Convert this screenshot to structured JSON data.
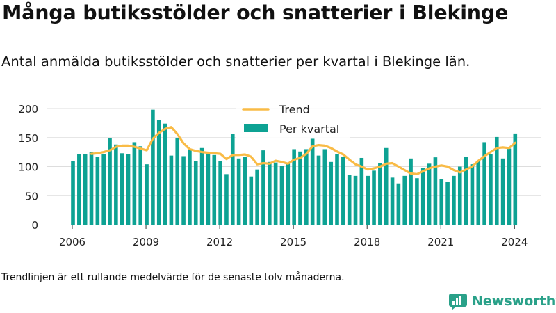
{
  "title": "Många butiksstölder och snatterier i Blekinge",
  "subtitle": "Antal anmälda butiksstölder och snatterier per kvartal i Blekinge län.",
  "footnote": "Trendlinjen är ett rullande medelvärde för de senaste tolv månaderna.",
  "brand": {
    "name": "Newsworthy",
    "icon": "newsworthy-logo-icon",
    "color": "#2aa189"
  },
  "colors": {
    "bar": "#0da293",
    "trend": "#f9bb46",
    "grid": "#dddddd",
    "axis": "#333333",
    "text": "#222222"
  },
  "chart_data": {
    "type": "bar",
    "x_start": "2006-Q1",
    "x_ticks": [
      "2006",
      "2009",
      "2012",
      "2015",
      "2018",
      "2021",
      "2024"
    ],
    "ylim": [
      0,
      200
    ],
    "y_ticks": [
      "0",
      "50",
      "100",
      "150",
      "200"
    ],
    "grid": true,
    "legend_position": "top-center",
    "xlabel": "",
    "ylabel": "",
    "series": [
      {
        "name": "Per kvartal",
        "type": "bar",
        "values": [
          110,
          122,
          121,
          125,
          117,
          122,
          149,
          138,
          123,
          121,
          142,
          135,
          104,
          198,
          180,
          174,
          119,
          149,
          118,
          130,
          110,
          132,
          124,
          120,
          110,
          87,
          156,
          114,
          117,
          83,
          95,
          128,
          108,
          107,
          101,
          105,
          130,
          126,
          130,
          148,
          119,
          130,
          108,
          122,
          117,
          86,
          84,
          115,
          84,
          93,
          106,
          132,
          81,
          71,
          84,
          114,
          80,
          98,
          105,
          116,
          79,
          74,
          84,
          100,
          117,
          104,
          110,
          142,
          122,
          151,
          114,
          131,
          157
        ]
      },
      {
        "name": "Trend",
        "type": "line",
        "values": [
          null,
          null,
          null,
          122,
          123,
          125,
          128,
          134,
          136,
          136,
          134,
          131,
          128,
          148,
          158,
          165,
          168,
          156,
          140,
          130,
          127,
          125,
          124,
          123,
          122,
          113,
          120,
          120,
          121,
          117,
          104,
          106,
          105,
          110,
          108,
          105,
          112,
          115,
          122,
          135,
          137,
          136,
          132,
          126,
          121,
          112,
          104,
          100,
          95,
          97,
          100,
          105,
          106,
          100,
          94,
          88,
          87,
          92,
          97,
          100,
          102,
          100,
          94,
          90,
          95,
          100,
          110,
          118,
          125,
          132,
          133,
          132,
          141
        ]
      }
    ]
  }
}
